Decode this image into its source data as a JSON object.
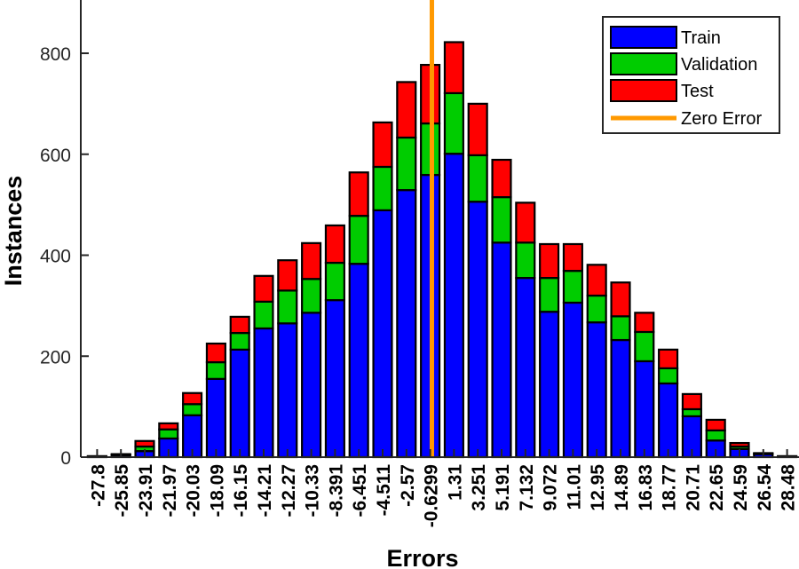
{
  "chart_data": {
    "type": "bar",
    "stacked": true,
    "title": "",
    "xlabel": "Errors",
    "ylabel": "Instances",
    "ylim": [
      0,
      900
    ],
    "yticks": [
      0,
      200,
      400,
      600,
      800
    ],
    "categories": [
      "-27.8",
      "-25.85",
      "-23.91",
      "-21.97",
      "-20.03",
      "-18.09",
      "-16.15",
      "-14.21",
      "-12.27",
      "-10.33",
      "-8.391",
      "-6.451",
      "-4.511",
      "-2.57",
      "-0.6299",
      "1.31",
      "3.251",
      "5.191",
      "7.132",
      "9.072",
      "11.01",
      "12.95",
      "14.89",
      "16.83",
      "18.77",
      "20.71",
      "22.65",
      "24.59",
      "26.54",
      "28.48"
    ],
    "series": [
      {
        "name": "Train",
        "color": "#0000ff",
        "values": [
          1,
          4,
          12,
          37,
          83,
          155,
          213,
          255,
          265,
          286,
          311,
          383,
          489,
          529,
          559,
          601,
          506,
          425,
          355,
          288,
          306,
          267,
          232,
          190,
          146,
          81,
          33,
          16,
          6,
          1
        ]
      },
      {
        "name": "Validation",
        "color": "#00cc00",
        "values": [
          0,
          1,
          9,
          18,
          22,
          33,
          33,
          53,
          65,
          67,
          74,
          95,
          86,
          104,
          102,
          120,
          92,
          90,
          70,
          67,
          63,
          53,
          47,
          58,
          30,
          14,
          20,
          5,
          1,
          0
        ]
      },
      {
        "name": "Test",
        "color": "#ff0000",
        "values": [
          1,
          1,
          11,
          12,
          22,
          37,
          32,
          51,
          60,
          71,
          74,
          86,
          88,
          110,
          116,
          101,
          102,
          74,
          79,
          67,
          53,
          61,
          67,
          38,
          37,
          30,
          21,
          7,
          1,
          1
        ]
      }
    ],
    "reference_line": {
      "name": "Zero Error",
      "color": "#ff9900",
      "x_category_position": 14.57
    },
    "legend": {
      "placement": "top-right",
      "entries": [
        "Train",
        "Validation",
        "Test",
        "Zero Error"
      ]
    },
    "grid": false
  }
}
